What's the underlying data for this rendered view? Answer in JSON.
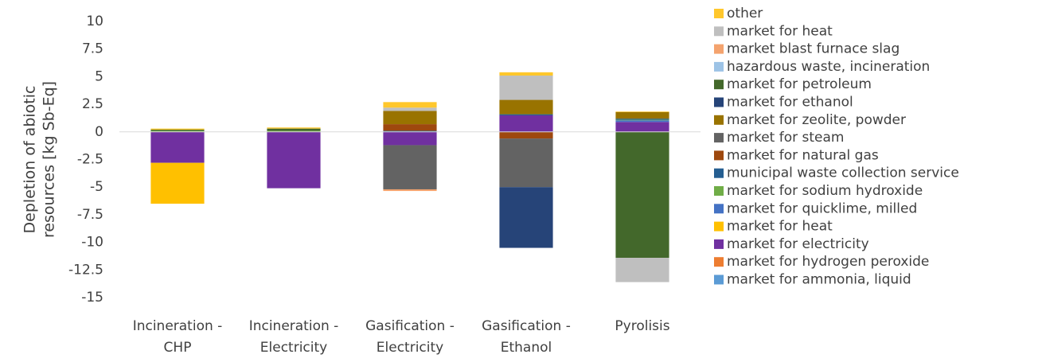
{
  "chart_data": {
    "type": "stacked_bar",
    "ylabel": [
      "Depletion of abiotic",
      "resources [kg Sb-Eq]"
    ],
    "categories": [
      "Incineration -\nCHP",
      "Incineration -\nElectricity",
      "Gasification -\nElectricity",
      "Gasification -\nEthanol",
      "Pyrolisis"
    ],
    "ylim": [
      -15,
      10
    ],
    "yticks": [
      10,
      7.5,
      5,
      2.5,
      0,
      -2.5,
      -5,
      -7.5,
      -10,
      -12.5,
      -15
    ],
    "grid": false,
    "legend": "right",
    "series": [
      {
        "name": "market for ammonia, liquid",
        "color": "#5b9bd5",
        "values": [
          0,
          0,
          0,
          0,
          0
        ]
      },
      {
        "name": "market for hydrogen peroxide",
        "color": "#ed7d31",
        "values": [
          0,
          0,
          0,
          0,
          0
        ]
      },
      {
        "name": "market for electricity",
        "color": "#7030a0",
        "values": [
          -2.8,
          -5.1,
          -1.2,
          1.5,
          0.9
        ]
      },
      {
        "name": "market for heat",
        "color": "#ffc000",
        "values": [
          -3.7,
          0,
          0,
          0,
          0
        ]
      },
      {
        "name": "market for quicklime, milled",
        "color": "#4472c4",
        "values": [
          0,
          0,
          0,
          0,
          0.15
        ]
      },
      {
        "name": "market for sodium hydroxide",
        "color": "#70ad47",
        "values": [
          0.1,
          0.1,
          0,
          0,
          0.05
        ]
      },
      {
        "name": "municipal waste collection service",
        "color": "#255e91",
        "values": [
          0,
          0,
          0.1,
          0.1,
          0.1
        ]
      },
      {
        "name": "market for natural gas",
        "color": "#9e480e",
        "values": [
          0,
          0,
          0.6,
          -0.6,
          0
        ]
      },
      {
        "name": "market for steam",
        "color": "#636363",
        "values": [
          0,
          0,
          -4,
          -4.4,
          0
        ]
      },
      {
        "name": "market for zeolite, powder",
        "color": "#997300",
        "values": [
          0,
          0,
          1.2,
          1.3,
          0.6
        ]
      },
      {
        "name": "market for ethanol",
        "color": "#264478",
        "values": [
          0,
          0,
          0,
          -5.5,
          0
        ]
      },
      {
        "name": "market for petroleum",
        "color": "#43682b",
        "values": [
          0.1,
          0.2,
          0,
          0,
          -11.4
        ]
      },
      {
        "name": "hazardous waste, incineration",
        "color": "#9dc3e6",
        "values": [
          0,
          0,
          0,
          0,
          0
        ]
      },
      {
        "name": "market blast furnace slag",
        "color": "#f4a36e",
        "values": [
          0,
          0,
          -0.15,
          0,
          0
        ]
      },
      {
        "name": "market for heat",
        "color": "#bfbfbf",
        "values": [
          0,
          0,
          0.3,
          2.2,
          -2.2
        ]
      },
      {
        "name": "other",
        "color": "#ffc72c",
        "values": [
          0.1,
          0.1,
          0.5,
          0.3,
          0.05
        ]
      }
    ]
  }
}
